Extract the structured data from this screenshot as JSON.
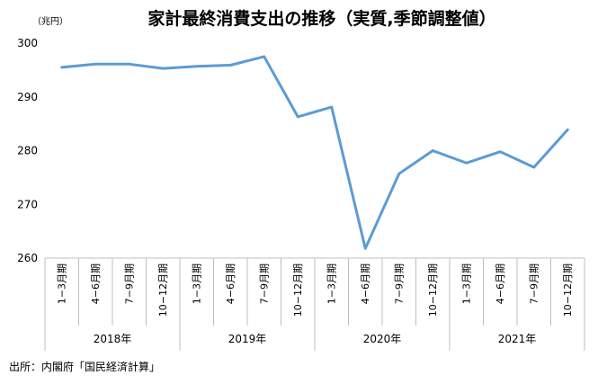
{
  "chart_data": {
    "type": "line",
    "title": "家計最終消費支出の推移（実質,季節調整値）",
    "unit_label": "（兆円）",
    "categories": [
      "1−3月期",
      "4−6月期",
      "7−9月期",
      "10−12月期",
      "1−3月期",
      "4−6月期",
      "7−9月期",
      "10−12月期",
      "1−3月期",
      "4−6月期",
      "7−9月期",
      "10−12月期",
      "1−3月期",
      "4−6月期",
      "7−9月期",
      "10−12月期"
    ],
    "years": [
      "2018年",
      "2019年",
      "2020年",
      "2021年"
    ],
    "series": [
      {
        "values": [
          295.5,
          296.1,
          296.1,
          295.3,
          295.7,
          295.9,
          297.5,
          286.3,
          288.1,
          261.8,
          275.7,
          280.0,
          277.7,
          279.8,
          276.9,
          283.9
        ]
      }
    ],
    "yticks": [
      300,
      290,
      280,
      270,
      260
    ],
    "ylim": [
      260,
      300
    ],
    "grid": false,
    "line_color": "#5b9bd5",
    "source": "出所：内閣府「国民経済計算」"
  }
}
